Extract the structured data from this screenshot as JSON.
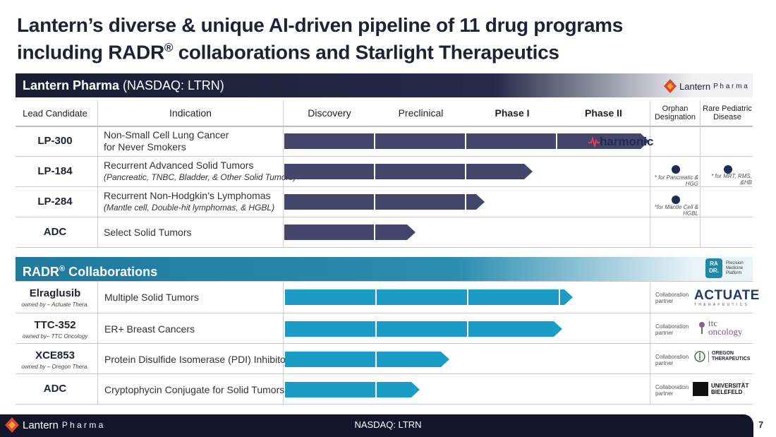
{
  "title_line1": "Lantern’s diverse & unique AI-driven pipeline of 11 drug programs",
  "title_line2_pre": "including RADR",
  "title_line2_sup": "®",
  "title_line2_post": " collaborations and Starlight Therapeutics",
  "lantern_header": {
    "bold": "Lantern Pharma",
    "normal": " (NASDAQ: LTRN)"
  },
  "brand": {
    "lantern": "Lantern",
    "pharma": "P h a r m a"
  },
  "columns": {
    "lead": "Lead Candidate",
    "indication": "Indication",
    "discovery": "Discovery",
    "preclinical": "Preclinical",
    "phase1": "Phase I",
    "phase2": "Phase II",
    "orphan": "Orphan Designation",
    "pediatric": "Rare Pediatric Disease"
  },
  "lantern_rows": [
    {
      "name": "LP-300",
      "ind1": "Non-Small Cell Lung Cancer",
      "ind2": "for Never Smokers",
      "progress": 1.0
    },
    {
      "name": "LP-184",
      "ind1": "Recurrent Advanced Solid Tumors",
      "ind2": "(Pancreatic, TNBC, Bladder, & Other Solid Tumors)",
      "progress": 0.68
    },
    {
      "name": "LP-284",
      "ind1": "Recurrent Non-Hodgkin’s Lymphomas",
      "ind2": "(Mantle cell, Double-hit lymphomas, & HGBL)",
      "progress": 0.55
    },
    {
      "name": "ADC",
      "ind1": "Select Solid Tumors",
      "ind2": "",
      "progress": 0.36
    }
  ],
  "notes": {
    "lp184_orphan": "* for Pancreatic & HGG",
    "lp184_pediatric": "* for MRT, RMS, &HB",
    "lp284_orphan": "*for Mantle Cell & HGBL"
  },
  "harmonic_label": "harmonic",
  "radr_header": {
    "pre": "RADR",
    "sup": "®",
    "post": " Collaborations"
  },
  "radr_logo": {
    "line1": "Precision",
    "line2": "Medicine",
    "line3": "Platform",
    "mark": "RA DR."
  },
  "radr_rows": [
    {
      "name": "Elraglusib",
      "owner": "owned by –  Actuate Thera.",
      "ind": "Multiple Solid Tumors",
      "progress": 0.79,
      "partner1": "ACTUATE",
      "partner2": "T H E R A P E U T I C S"
    },
    {
      "name": "TTC-352",
      "owner": "owned by– TTC Oncology",
      "ind": "ER+ Breast Cancers",
      "progress": 0.76,
      "partner1": "ttc",
      "partner2": "oncology"
    },
    {
      "name": "XCE853",
      "owner": "owned by – Oregon Thera.",
      "ind": "Protein Disulfide Isomerase (PDI) Inhibitor",
      "progress": 0.45,
      "partner1": "OREGON",
      "partner2": "THERAPEUTICS"
    },
    {
      "name": "ADC",
      "owner": "",
      "ind": "Cryptophycin Conjugate for Solid Tumors",
      "progress": 0.37,
      "partner1": "UNIVERSITÄT",
      "partner2": "BIELEFELD"
    }
  ],
  "collab_label1": "Collaboration",
  "collab_label2": "partner",
  "footer": {
    "ticker": "NASDAQ: LTRN",
    "page": "7"
  },
  "colors": {
    "lantern_bar": "#44456a",
    "radr_bar": "#1b9cc7",
    "navy": "#1c1d33",
    "teal": "#1f7a9c"
  }
}
